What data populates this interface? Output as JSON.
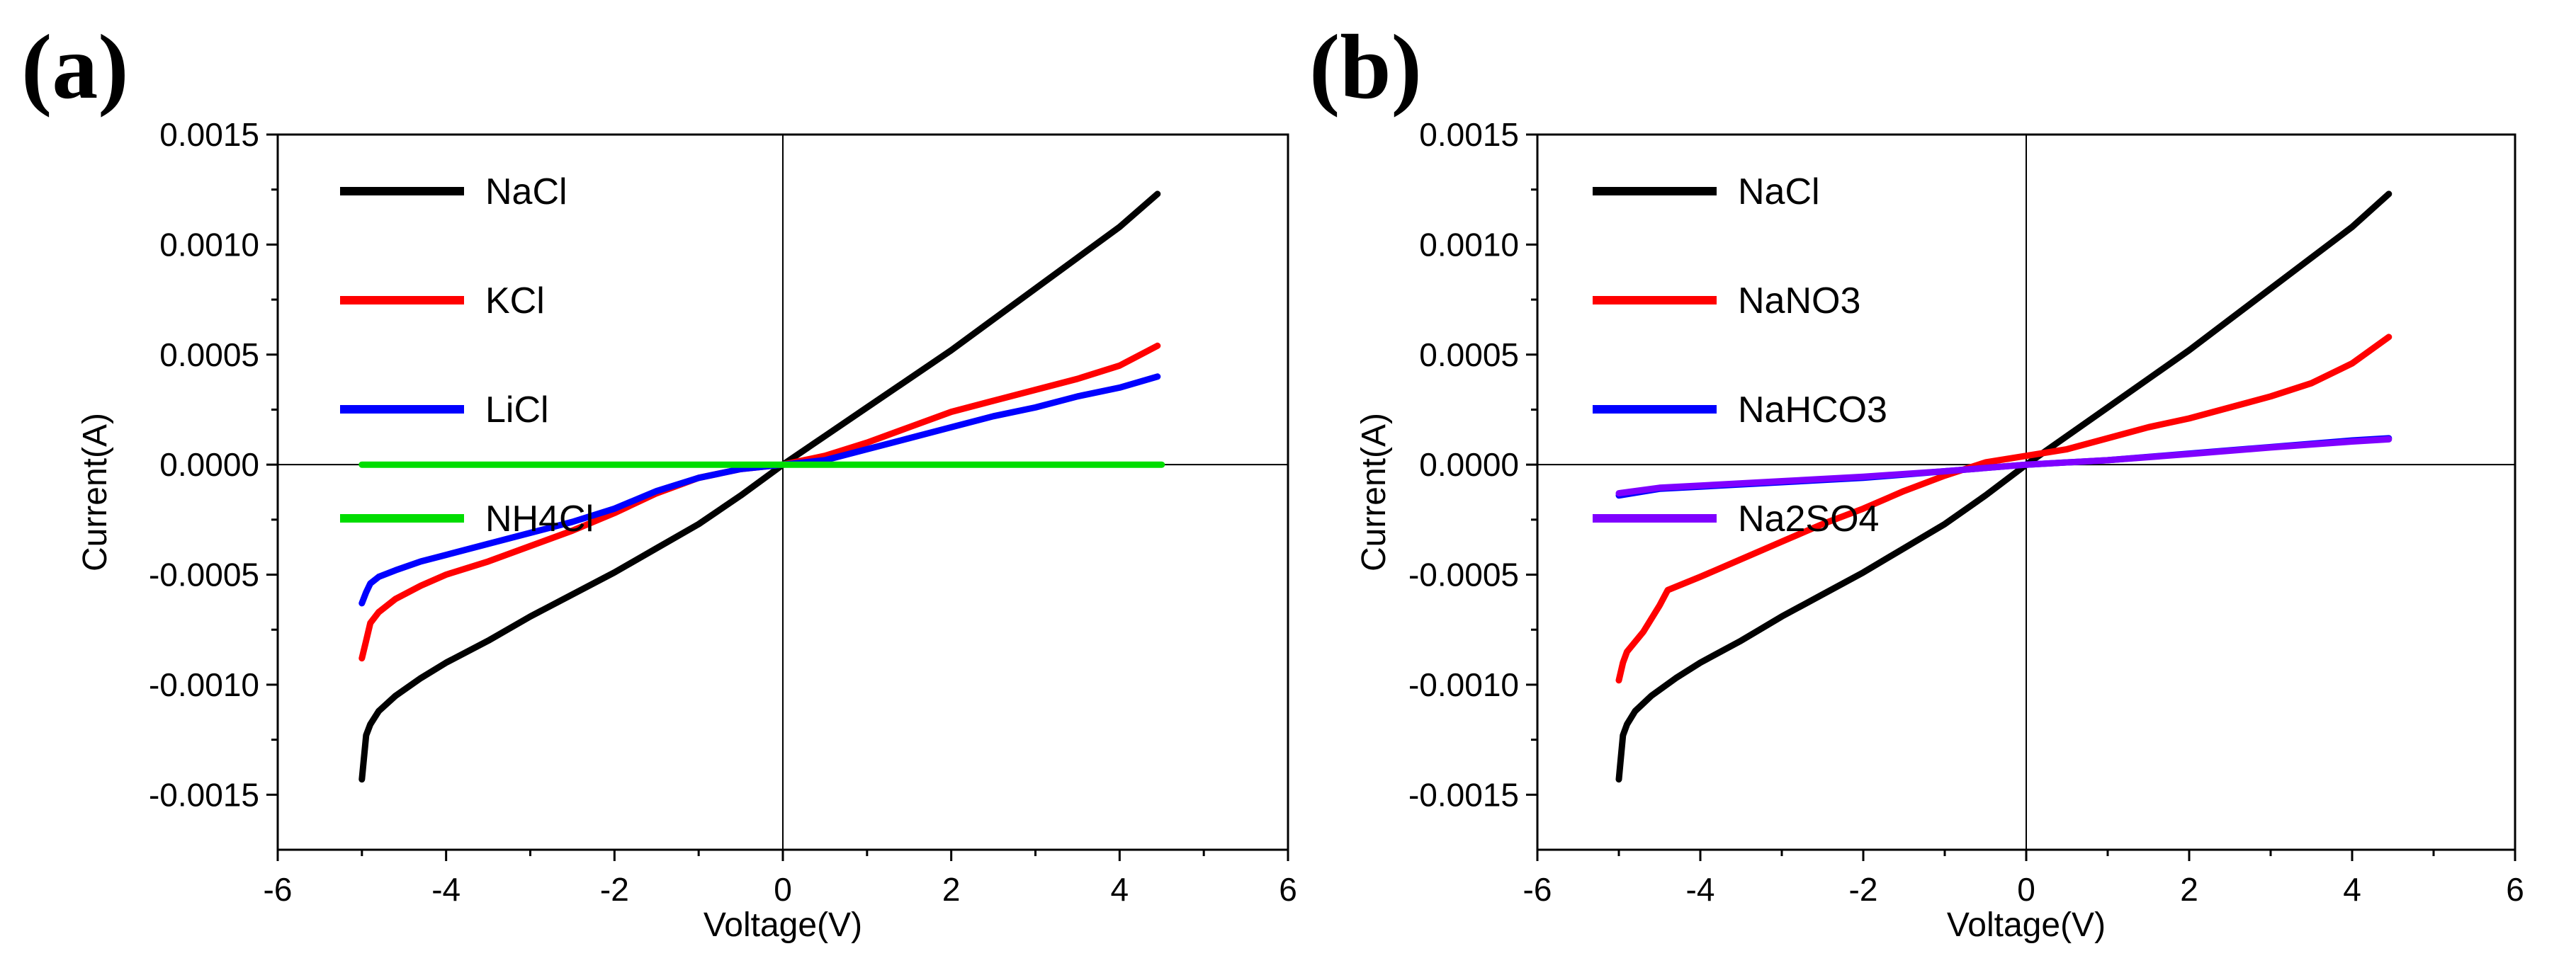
{
  "chart_data": [
    {
      "type": "line",
      "panel_label": "(a)",
      "title": "",
      "xlabel": "Voltage(V)",
      "ylabel": "Current(A)",
      "xlim": [
        -6,
        6
      ],
      "ylim": [
        -0.00175,
        0.0015
      ],
      "xticks": [
        -6,
        -4,
        -2,
        0,
        2,
        4,
        6
      ],
      "xtick_labels": [
        "-6",
        "-4",
        "-2",
        "0",
        "2",
        "4",
        "6"
      ],
      "yticks": [
        -0.0015,
        -0.001,
        -0.0005,
        0,
        0.0005,
        0.001,
        0.0015
      ],
      "ytick_labels": [
        "-0.0015",
        "-0.0010",
        "-0.0005",
        "0.0000",
        "0.0005",
        "0.0010",
        "0.0015"
      ],
      "grid": false,
      "legend_position": "top-left",
      "series": [
        {
          "name": "NaCl",
          "color": "#000000",
          "x": [
            -5,
            -4.98,
            -4.95,
            -4.9,
            -4.8,
            -4.6,
            -4.3,
            -4,
            -3.5,
            -3,
            -2.5,
            -2,
            -1.5,
            -1,
            -0.5,
            0,
            0.5,
            1,
            1.5,
            2,
            2.5,
            3,
            3.5,
            4,
            4.45
          ],
          "y": [
            -0.00143,
            -0.00135,
            -0.00123,
            -0.00118,
            -0.00112,
            -0.00105,
            -0.00097,
            -0.0009,
            -0.0008,
            -0.00069,
            -0.00059,
            -0.00049,
            -0.00038,
            -0.00027,
            -0.00014,
            0,
            0.00013,
            0.00026,
            0.00039,
            0.00052,
            0.00066,
            0.0008,
            0.00094,
            0.00108,
            0.00123
          ]
        },
        {
          "name": "KCl",
          "color": "#ff0000",
          "x": [
            -5,
            -4.95,
            -4.9,
            -4.8,
            -4.6,
            -4.3,
            -4,
            -3.5,
            -3,
            -2.5,
            -2,
            -1.5,
            -1,
            -0.5,
            0,
            0.5,
            1,
            1.5,
            2,
            2.5,
            3,
            3.5,
            4,
            4.45
          ],
          "y": [
            -0.00088,
            -0.0008,
            -0.00072,
            -0.00067,
            -0.00061,
            -0.00055,
            -0.0005,
            -0.00044,
            -0.00037,
            -0.0003,
            -0.00022,
            -0.00013,
            -6e-05,
            -2e-05,
            0,
            4e-05,
            0.0001,
            0.00017,
            0.00024,
            0.00029,
            0.00034,
            0.00039,
            0.00045,
            0.00054
          ]
        },
        {
          "name": "LiCl",
          "color": "#0000ff",
          "x": [
            -5,
            -4.95,
            -4.9,
            -4.8,
            -4.6,
            -4.3,
            -4,
            -3.5,
            -3,
            -2.5,
            -2,
            -1.5,
            -1,
            -0.5,
            0,
            0.5,
            1,
            1.5,
            2,
            2.5,
            3,
            3.5,
            4,
            4.45
          ],
          "y": [
            -0.00063,
            -0.00058,
            -0.00054,
            -0.00051,
            -0.00048,
            -0.00044,
            -0.00041,
            -0.00036,
            -0.00031,
            -0.00026,
            -0.0002,
            -0.00012,
            -6e-05,
            -2e-05,
            0,
            2e-05,
            7e-05,
            0.00012,
            0.00017,
            0.00022,
            0.00026,
            0.00031,
            0.00035,
            0.0004
          ]
        },
        {
          "name": "NH4Cl",
          "color": "#00dd00",
          "x": [
            -5,
            -2.5,
            0,
            2.5,
            4.5
          ],
          "y": [
            0,
            0,
            0,
            0,
            0
          ]
        }
      ]
    },
    {
      "type": "line",
      "panel_label": "(b)",
      "title": "",
      "xlabel": "Voltage(V)",
      "ylabel": "Current(A)",
      "xlim": [
        -6,
        6
      ],
      "ylim": [
        -0.00175,
        0.0015
      ],
      "xticks": [
        -6,
        -4,
        -2,
        0,
        2,
        4,
        6
      ],
      "xtick_labels": [
        "-6",
        "-4",
        "-2",
        "0",
        "2",
        "4",
        "6"
      ],
      "yticks": [
        -0.0015,
        -0.001,
        -0.0005,
        0,
        0.0005,
        0.001,
        0.0015
      ],
      "ytick_labels": [
        "-0.0015",
        "-0.0010",
        "-0.0005",
        "0.0000",
        "0.0005",
        "0.0010",
        "0.0015"
      ],
      "grid": false,
      "legend_position": "top-left",
      "series": [
        {
          "name": "NaCl",
          "color": "#000000",
          "x": [
            -5,
            -4.98,
            -4.95,
            -4.9,
            -4.8,
            -4.6,
            -4.3,
            -4,
            -3.5,
            -3,
            -2.5,
            -2,
            -1.5,
            -1,
            -0.5,
            0,
            0.5,
            1,
            1.5,
            2,
            2.5,
            3,
            3.5,
            4,
            4.45
          ],
          "y": [
            -0.00143,
            -0.00135,
            -0.00123,
            -0.00118,
            -0.00112,
            -0.00105,
            -0.00097,
            -0.0009,
            -0.0008,
            -0.00069,
            -0.00059,
            -0.00049,
            -0.00038,
            -0.00027,
            -0.00014,
            0,
            0.00013,
            0.00026,
            0.00039,
            0.00052,
            0.00066,
            0.0008,
            0.00094,
            0.00108,
            0.00123
          ]
        },
        {
          "name": "NaNO3",
          "color": "#ff0000",
          "x": [
            -5,
            -4.95,
            -4.9,
            -4.7,
            -4.5,
            -4.4,
            -4,
            -3.5,
            -3,
            -2.5,
            -2,
            -1.5,
            -1,
            -0.5,
            0,
            0.5,
            1,
            1.5,
            2,
            2.5,
            3,
            3.5,
            4,
            4.45
          ],
          "y": [
            -0.00098,
            -0.0009,
            -0.00085,
            -0.00076,
            -0.00064,
            -0.00057,
            -0.00051,
            -0.00043,
            -0.00035,
            -0.00027,
            -0.0002,
            -0.00012,
            -5e-05,
            1e-05,
            4e-05,
            7e-05,
            0.00012,
            0.00017,
            0.00021,
            0.00026,
            0.00031,
            0.00037,
            0.00046,
            0.00058
          ]
        },
        {
          "name": "NaHCO3",
          "color": "#0000ff",
          "x": [
            -5,
            -4.5,
            -4,
            -3,
            -2,
            -1,
            0,
            1,
            2,
            3,
            4,
            4.45
          ],
          "y": [
            -0.00014,
            -0.00011,
            -0.0001,
            -8e-05,
            -6e-05,
            -3e-05,
            0,
            2e-05,
            5e-05,
            8e-05,
            0.00011,
            0.00012
          ]
        },
        {
          "name": "Na2SO4",
          "color": "#7f00ff",
          "x": [
            -5,
            -4.5,
            -4,
            -3,
            -2,
            -1,
            0,
            1,
            2,
            3,
            4,
            4.45
          ],
          "y": [
            -0.00013,
            -0.000105,
            -9.5e-05,
            -7.5e-05,
            -5.5e-05,
            -3e-05,
            0,
            2e-05,
            4.8e-05,
            7.8e-05,
            0.000105,
            0.000115
          ]
        }
      ]
    }
  ]
}
